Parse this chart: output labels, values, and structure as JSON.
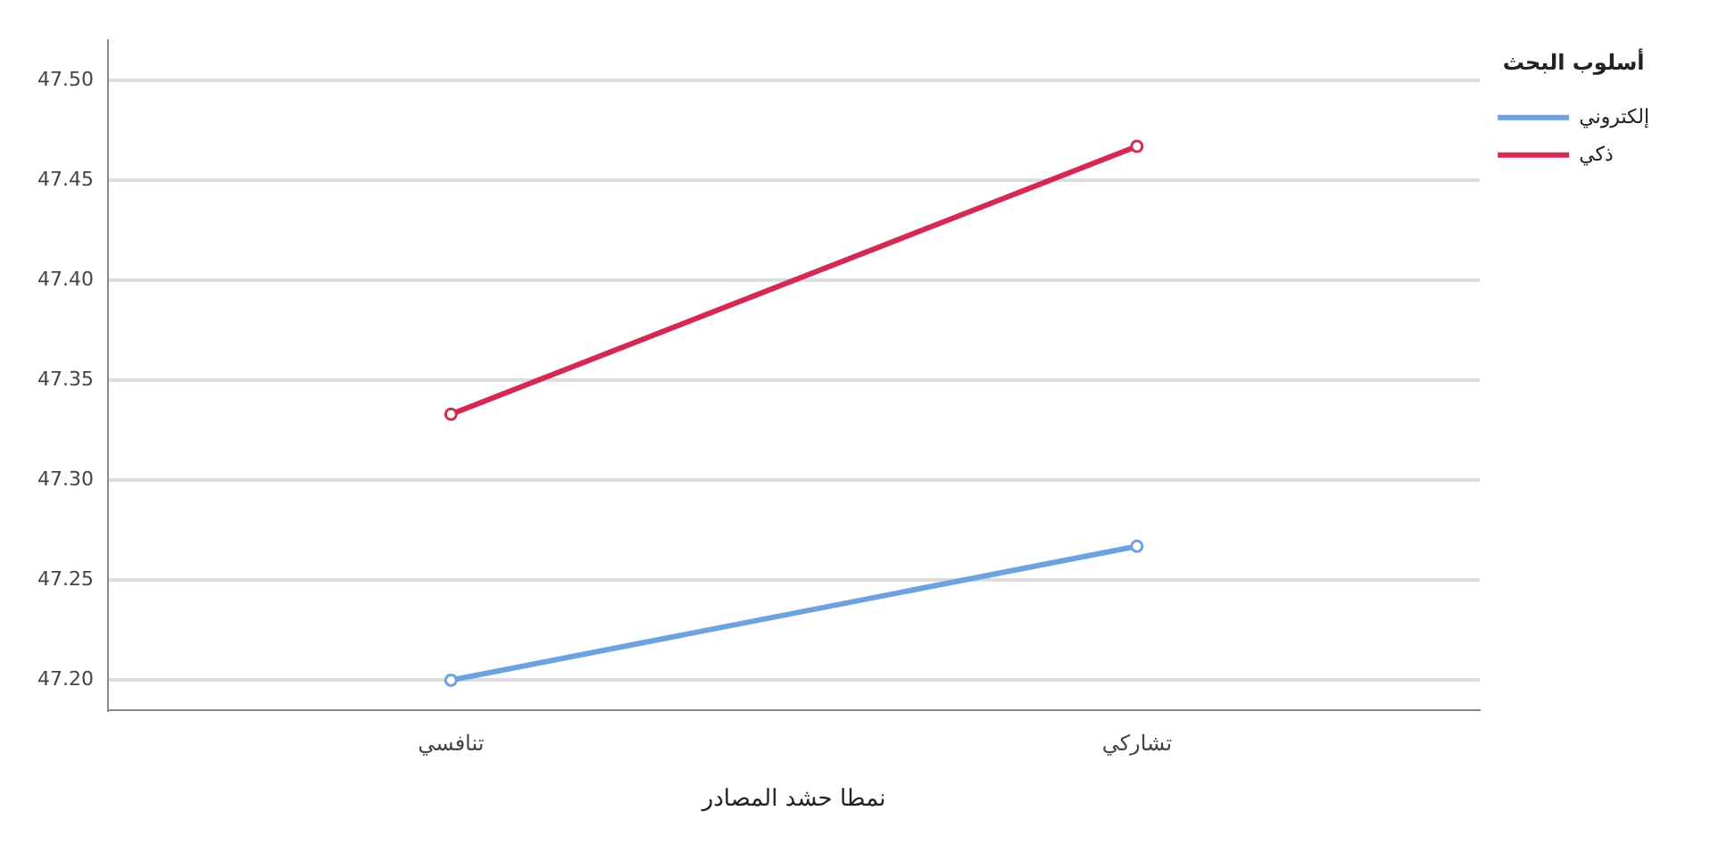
{
  "chart_data": {
    "type": "line",
    "xlabel": "نمطا حشد المصادر",
    "legend_title": "أسلوب البحث",
    "categories": [
      "تنافسي",
      "تشاركي"
    ],
    "series": [
      {
        "name": "إلكتروني",
        "color": "#6ea1e0",
        "values": [
          47.2,
          47.267
        ]
      },
      {
        "name": "ذكي",
        "color": "#d42a52",
        "values": [
          47.333,
          47.467
        ]
      }
    ],
    "ylim": [
      47.185,
      47.52
    ],
    "yticks": [
      {
        "value": 47.2,
        "label": "47.20"
      },
      {
        "value": 47.25,
        "label": "47.25"
      },
      {
        "value": 47.3,
        "label": "47.30"
      },
      {
        "value": 47.35,
        "label": "47.35"
      },
      {
        "value": 47.4,
        "label": "47.40"
      },
      {
        "value": 47.45,
        "label": "47.45"
      },
      {
        "value": 47.5,
        "label": "47.50"
      }
    ],
    "grid": "y",
    "legend": "top right",
    "marker": "circle",
    "line_style": "solid"
  }
}
